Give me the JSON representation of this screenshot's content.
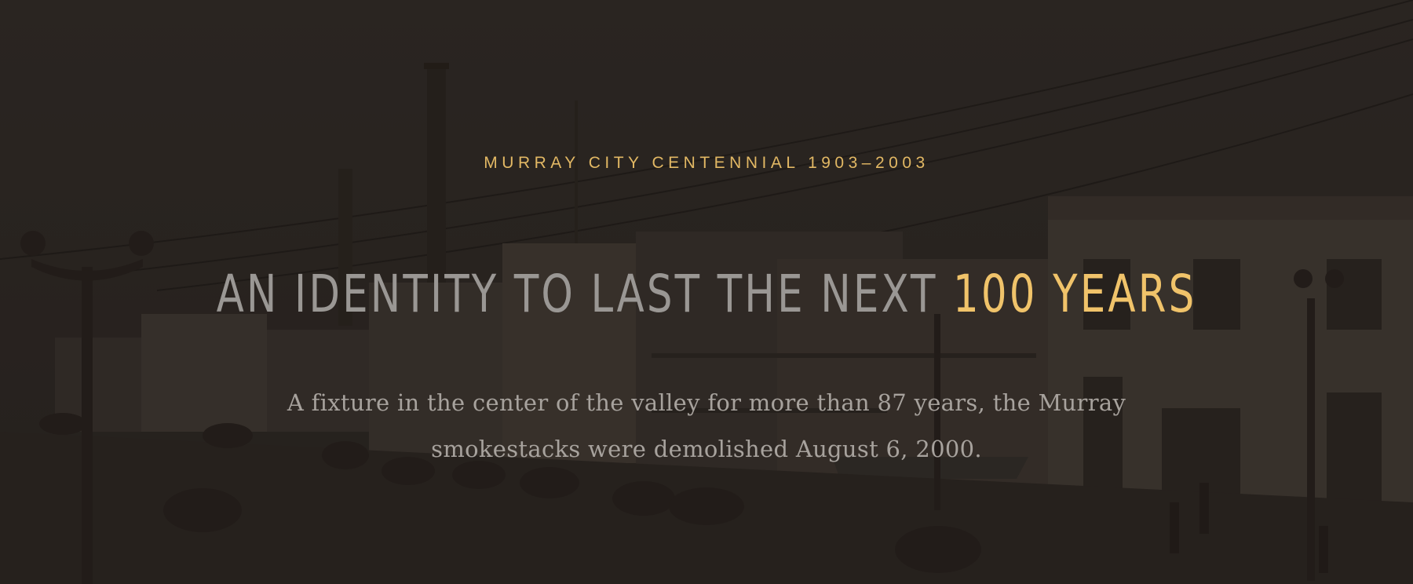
{
  "hero": {
    "eyebrow": "MURRAY CITY CENTENNIAL 1903–2003",
    "headline_main": "AN IDENTITY TO LAST THE NEXT ",
    "headline_accent": "100 YEARS",
    "lead": "A fixture in the center of the valley for more than 87 years, the Murray smokestacks were demolished August 6, 2000."
  },
  "colors": {
    "background": "#2e2a27",
    "accent": "#f0c36a",
    "eyebrow": "#e2b864",
    "headline": "#9a9794",
    "body_text": "#a7a29d"
  }
}
